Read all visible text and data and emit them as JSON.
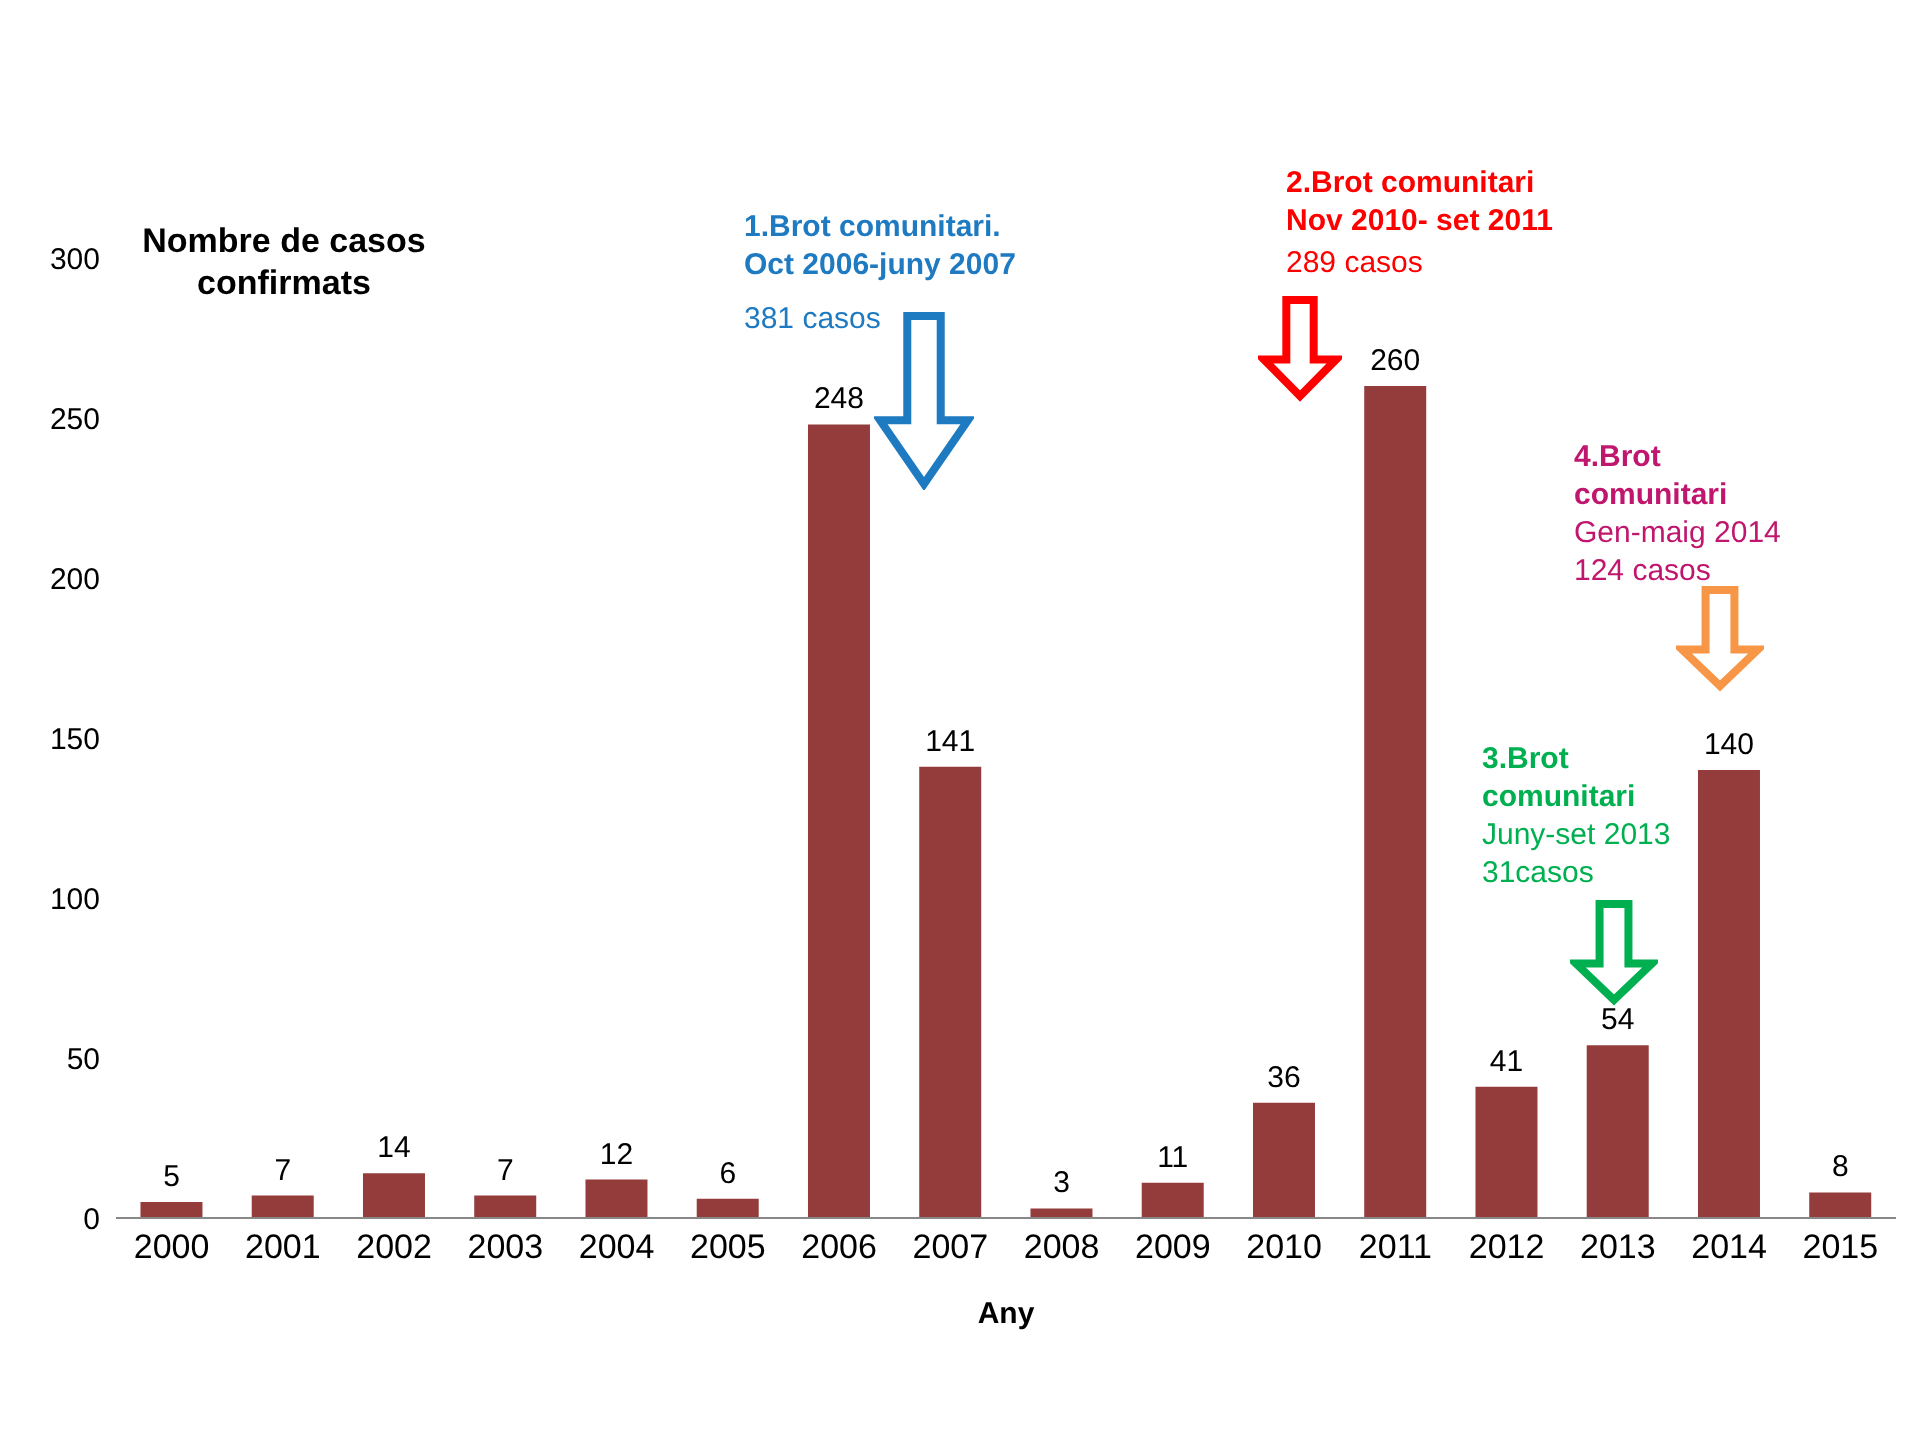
{
  "chart_data": {
    "type": "bar",
    "xlabel": "Any",
    "ylabel": "Nombre de casos confirmats",
    "categories": [
      "2000",
      "2001",
      "2002",
      "2003",
      "2004",
      "2005",
      "2006",
      "2007",
      "2008",
      "2009",
      "2010",
      "2011",
      "2012",
      "2013",
      "2014",
      "2015"
    ],
    "values": [
      5,
      7,
      14,
      7,
      12,
      6,
      248,
      141,
      3,
      11,
      36,
      260,
      41,
      54,
      140,
      8
    ],
    "color": "#943c3c",
    "ylim": [
      0,
      300
    ],
    "yticks": [
      0,
      50,
      100,
      150,
      200,
      250,
      300
    ],
    "grid": false,
    "data_labels": true,
    "annotations": [
      "1.Brot comunitari.\nOct 2006-juny 2007",
      "381 casos",
      "2.Brot comunitari\nNov 2010- set 2011",
      "289 casos",
      "3.Brot\ncomunitari",
      "Juny-set 2013\n31casos",
      "4.Brot\ncomunitari",
      "Gen-maig 2014\n124 casos"
    ]
  }
}
